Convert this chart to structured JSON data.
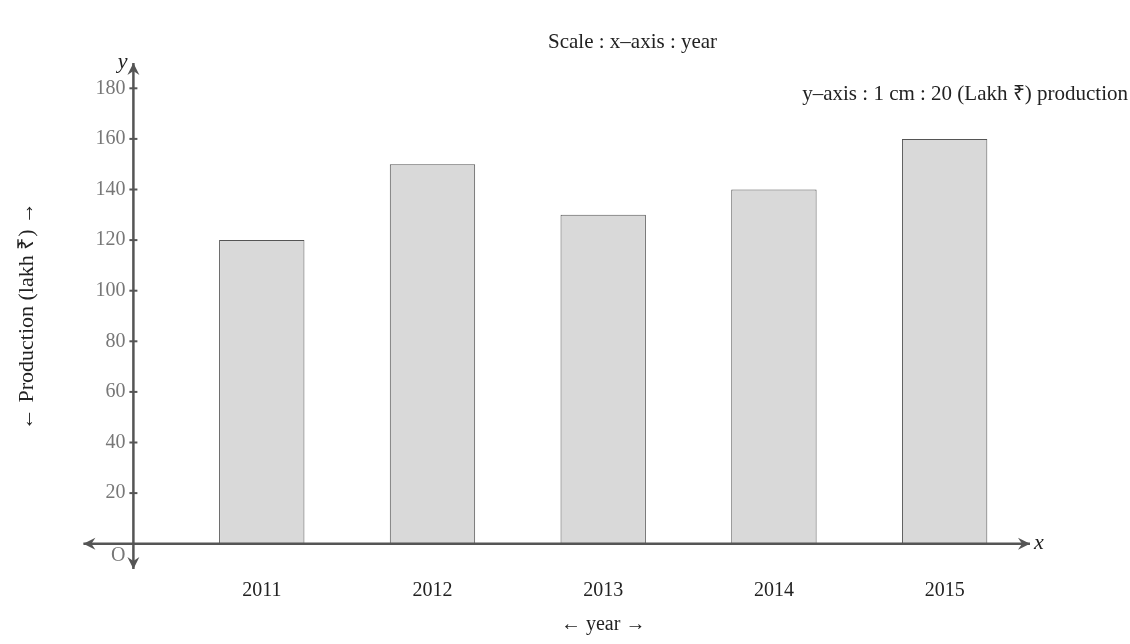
{
  "chart_data": {
    "type": "bar",
    "xlabel": "← year →",
    "ylabel": "← Production (lakh ₹) →",
    "categories": [
      "2011",
      "2012",
      "2013",
      "2014",
      "2015"
    ],
    "values": [
      120,
      150,
      130,
      140,
      160
    ],
    "color": "#d9d9d9",
    "ylim": [
      -10,
      190
    ],
    "yticks": [
      {
        "value": 0,
        "label": "O"
      },
      20,
      40,
      60,
      80,
      100,
      120,
      140,
      160,
      180
    ],
    "grid": false,
    "legend": false,
    "annotations": [
      "Scale : x–axis : year",
      "y–axis : 1 cm : 20 (Lakh ₹) production",
      "x",
      "y"
    ]
  }
}
